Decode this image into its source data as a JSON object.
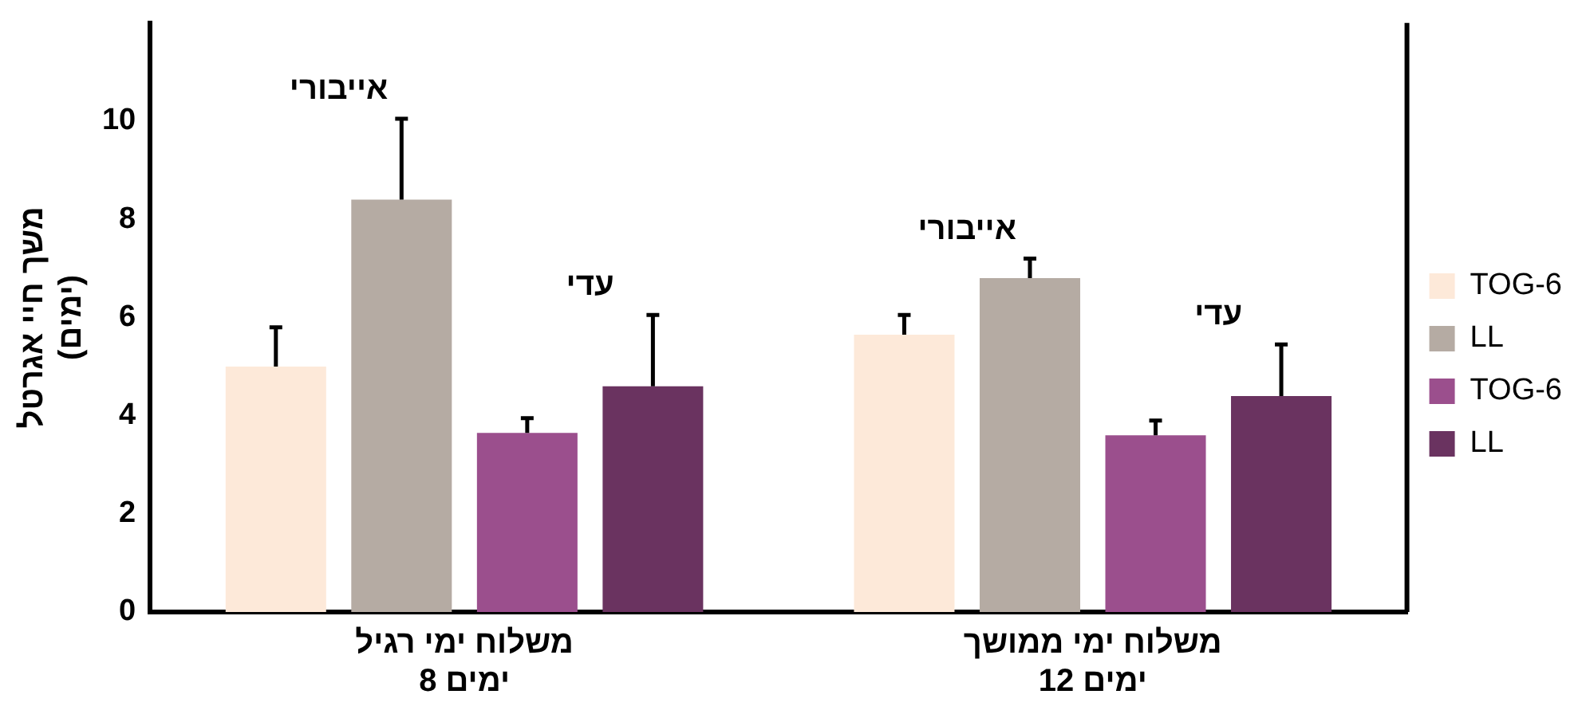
{
  "chart_data": {
    "type": "bar",
    "ylabel": "משך חיי אגרטל\n(ימים)",
    "categories": [
      "משלוח ימי רגיל\n8 ימים",
      "משלוח ימי ממושך\n12 ימים"
    ],
    "series": [
      {
        "name": "TOG-6",
        "color": "#fde9d9",
        "values": [
          5.0,
          5.65
        ],
        "errors": [
          [
            5.0,
            5.8
          ],
          [
            5.65,
            6.05
          ]
        ]
      },
      {
        "name": "LL",
        "color": "#b5aba3",
        "values": [
          8.4,
          6.8
        ],
        "errors": [
          [
            8.4,
            10.05
          ],
          [
            6.8,
            7.2
          ]
        ]
      },
      {
        "name": "TOG-6",
        "color": "#9b4f8d",
        "values": [
          3.65,
          3.6
        ],
        "errors": [
          [
            3.65,
            3.95
          ],
          [
            3.6,
            3.9
          ]
        ]
      },
      {
        "name": "LL",
        "color": "#6a3360",
        "values": [
          4.6,
          4.4
        ],
        "errors": [
          [
            4.6,
            6.05
          ],
          [
            4.4,
            5.45
          ]
        ]
      }
    ],
    "annotations": [
      "אייבורי",
      "עדי",
      "אייבורי",
      "עדי"
    ],
    "ylim": [
      0,
      12
    ],
    "yticks": [
      0,
      2,
      4,
      6,
      8,
      10
    ],
    "grid": false,
    "legend": "right"
  }
}
